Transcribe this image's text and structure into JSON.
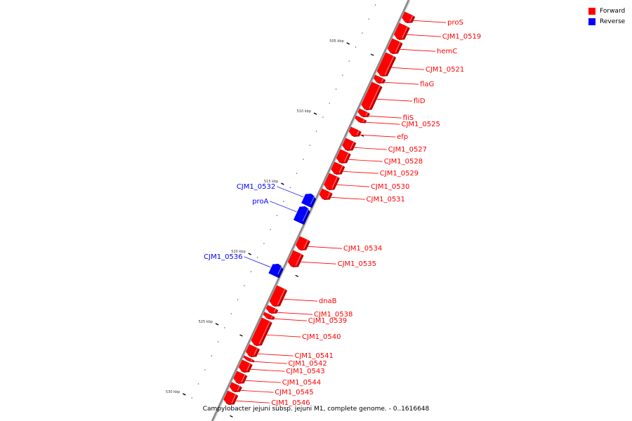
{
  "legend": {
    "items": [
      {
        "label": "Forward",
        "color": "#ff0000"
      },
      {
        "label": "Reverse",
        "color": "#0000ff"
      }
    ]
  },
  "caption": "Campylobacter jejuni subsp. jejuni M1, complete genome. - 0..1616648",
  "colors": {
    "forward": "#ff0000",
    "reverse": "#0000ff",
    "backbone": "#888888"
  },
  "ticks": [
    {
      "kbp": 505,
      "label": "505 kbp"
    },
    {
      "kbp": 510,
      "label": "510 kbp"
    },
    {
      "kbp": 515,
      "label": "515 kbp"
    },
    {
      "kbp": 520,
      "label": "520 kbp"
    },
    {
      "kbp": 525,
      "label": "525 kbp"
    },
    {
      "kbp": 530,
      "label": "530 kbp"
    }
  ],
  "genes": [
    {
      "name": "proS",
      "strand": "forward",
      "start_kbp": 501.6,
      "end_kbp": 502.2
    },
    {
      "name": "CJM1_0519",
      "strand": "forward",
      "start_kbp": 502.4,
      "end_kbp": 503.4
    },
    {
      "name": "hemC",
      "strand": "forward",
      "start_kbp": 503.5,
      "end_kbp": 504.4
    },
    {
      "name": "CJM1_0521",
      "strand": "forward",
      "start_kbp": 504.5,
      "end_kbp": 506.0
    },
    {
      "name": "flaG",
      "strand": "forward",
      "start_kbp": 506.1,
      "end_kbp": 506.5
    },
    {
      "name": "fliD",
      "strand": "forward",
      "start_kbp": 506.6,
      "end_kbp": 508.4
    },
    {
      "name": "fliS",
      "strand": "forward",
      "start_kbp": 508.5,
      "end_kbp": 508.9
    },
    {
      "name": "CJM1_0525",
      "strand": "forward",
      "start_kbp": 509.0,
      "end_kbp": 509.3
    },
    {
      "name": "efp",
      "strand": "forward",
      "start_kbp": 509.8,
      "end_kbp": 510.3
    },
    {
      "name": "CJM1_0527",
      "strand": "forward",
      "start_kbp": 510.6,
      "end_kbp": 511.3
    },
    {
      "name": "CJM1_0528",
      "strand": "forward",
      "start_kbp": 511.4,
      "end_kbp": 512.2
    },
    {
      "name": "CJM1_0529",
      "strand": "forward",
      "start_kbp": 512.3,
      "end_kbp": 513.0
    },
    {
      "name": "CJM1_0530",
      "strand": "forward",
      "start_kbp": 513.1,
      "end_kbp": 514.1
    },
    {
      "name": "CJM1_0531",
      "strand": "forward",
      "start_kbp": 514.2,
      "end_kbp": 514.8
    },
    {
      "name": "CJM1_0532",
      "strand": "reverse",
      "start_kbp": 514.8,
      "end_kbp": 515.6
    },
    {
      "name": "proA",
      "strand": "reverse",
      "start_kbp": 515.7,
      "end_kbp": 516.8
    },
    {
      "name": "CJM1_0534",
      "strand": "forward",
      "start_kbp": 517.6,
      "end_kbp": 518.4
    },
    {
      "name": "CJM1_0535",
      "strand": "forward",
      "start_kbp": 518.6,
      "end_kbp": 519.6
    },
    {
      "name": "CJM1_0536",
      "strand": "reverse",
      "start_kbp": 519.8,
      "end_kbp": 520.6
    },
    {
      "name": "dnaB",
      "strand": "forward",
      "start_kbp": 521.1,
      "end_kbp": 522.4
    },
    {
      "name": "CJM1_0538",
      "strand": "forward",
      "start_kbp": 522.5,
      "end_kbp": 522.9
    },
    {
      "name": "CJM1_0539",
      "strand": "forward",
      "start_kbp": 523.0,
      "end_kbp": 523.3
    },
    {
      "name": "CJM1_0540",
      "strand": "forward",
      "start_kbp": 523.4,
      "end_kbp": 525.2
    },
    {
      "name": "CJM1_0541",
      "strand": "forward",
      "start_kbp": 525.3,
      "end_kbp": 526.0
    },
    {
      "name": "CJM1_0542",
      "strand": "forward",
      "start_kbp": 526.1,
      "end_kbp": 526.3
    },
    {
      "name": "CJM1_0543",
      "strand": "forward",
      "start_kbp": 526.4,
      "end_kbp": 527.1
    },
    {
      "name": "CJM1_0544",
      "strand": "forward",
      "start_kbp": 527.2,
      "end_kbp": 527.9
    },
    {
      "name": "CJM1_0545",
      "strand": "forward",
      "start_kbp": 528.0,
      "end_kbp": 528.5
    },
    {
      "name": "CJM1_0546",
      "strand": "forward",
      "start_kbp": 528.6,
      "end_kbp": 529.4
    }
  ]
}
